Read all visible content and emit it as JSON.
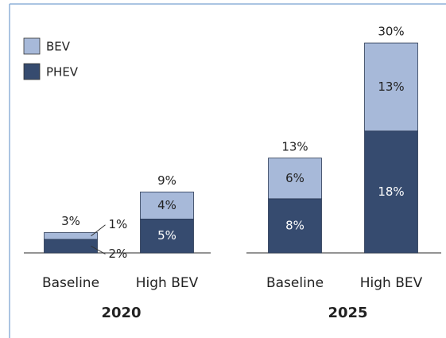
{
  "chart_data": {
    "type": "stacked-bar",
    "groups": [
      "2020",
      "2025"
    ],
    "categories": [
      "Baseline",
      "High BEV",
      "Baseline",
      "High BEV"
    ],
    "series": [
      {
        "name": "PHEV",
        "color": "#364b6f",
        "values": [
          2,
          5,
          8,
          18
        ],
        "value_labels": [
          "2%",
          "5%",
          "8%",
          "18%"
        ]
      },
      {
        "name": "BEV",
        "color": "#a7b9d9",
        "values": [
          1,
          4,
          6,
          13
        ],
        "value_labels": [
          "1%",
          "4%",
          "6%",
          "13%"
        ]
      }
    ],
    "totals": [
      3,
      9,
      13,
      30
    ],
    "total_labels": [
      "3%",
      "9%",
      "13%",
      "30%"
    ],
    "ylim": [
      0,
      35
    ],
    "legend": "top-left"
  }
}
